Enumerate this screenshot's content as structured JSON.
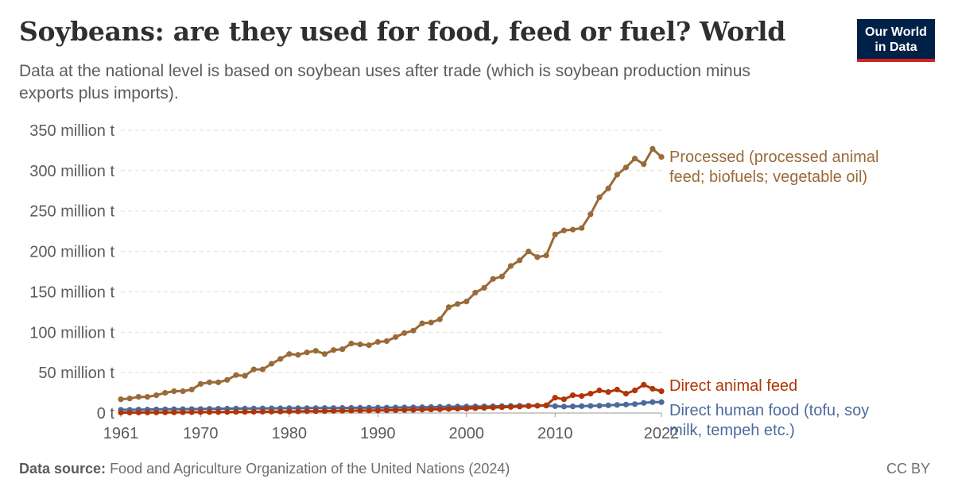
{
  "header": {
    "title": "Soybeans: are they used for food, feed or fuel? World",
    "subtitle": "Data at the national level is based on soybean uses after trade (which is soybean production minus exports plus imports).",
    "logo_line1": "Our World",
    "logo_line2": "in Data"
  },
  "footer": {
    "source_label": "Data source:",
    "source_text": "Food and Agriculture Organization of the United Nations (2024)",
    "license": "CC BY"
  },
  "chart_data": {
    "type": "line",
    "title": "Soybeans: are they used for food, feed or fuel? World",
    "xlabel": "",
    "ylabel": "",
    "xlim": [
      1961,
      2022
    ],
    "ylim": [
      0,
      350000000
    ],
    "y_ticks": [
      0,
      50000000,
      100000000,
      150000000,
      200000000,
      250000000,
      300000000,
      350000000
    ],
    "y_tick_labels": [
      "0 t",
      "50 million t",
      "100 million t",
      "150 million t",
      "200 million t",
      "250 million t",
      "300 million t",
      "350 million t"
    ],
    "x_ticks": [
      1961,
      1970,
      1980,
      1990,
      2000,
      2010,
      2022
    ],
    "x_tick_labels": [
      "1961",
      "1970",
      "1980",
      "1990",
      "2000",
      "2010",
      "2022"
    ],
    "grid": "horizontal dashed",
    "legend": "inline-right",
    "x": [
      1961,
      1962,
      1963,
      1964,
      1965,
      1966,
      1967,
      1968,
      1969,
      1970,
      1971,
      1972,
      1973,
      1974,
      1975,
      1976,
      1977,
      1978,
      1979,
      1980,
      1981,
      1982,
      1983,
      1984,
      1985,
      1986,
      1987,
      1988,
      1989,
      1990,
      1991,
      1992,
      1993,
      1994,
      1995,
      1996,
      1997,
      1998,
      1999,
      2000,
      2001,
      2002,
      2003,
      2004,
      2005,
      2006,
      2007,
      2008,
      2009,
      2010,
      2011,
      2012,
      2013,
      2014,
      2015,
      2016,
      2017,
      2018,
      2019,
      2020,
      2021,
      2022
    ],
    "series": [
      {
        "name": "Processed (processed animal feed; biofuels; vegetable oil)",
        "label_lines": [
          "Processed (processed animal",
          "feed; biofuels; vegetable oil)"
        ],
        "color": "#9a6a38",
        "values": [
          17000000,
          18000000,
          20000000,
          20000000,
          22000000,
          25000000,
          27000000,
          27000000,
          29000000,
          36000000,
          38000000,
          38000000,
          41000000,
          47000000,
          46000000,
          54000000,
          54000000,
          61000000,
          67000000,
          73000000,
          72000000,
          75000000,
          77000000,
          73000000,
          78000000,
          79000000,
          86000000,
          85000000,
          84000000,
          88000000,
          89000000,
          94000000,
          99000000,
          102000000,
          111000000,
          112000000,
          116000000,
          131000000,
          135000000,
          138000000,
          149000000,
          155000000,
          166000000,
          169000000,
          182000000,
          189000000,
          200000000,
          193000000,
          195000000,
          221000000,
          226000000,
          227000000,
          229000000,
          246000000,
          267000000,
          278000000,
          295000000,
          304000000,
          315000000,
          308000000,
          327000000,
          317000000
        ]
      },
      {
        "name": "Direct animal feed",
        "label_lines": [
          "Direct animal feed"
        ],
        "color": "#b13507",
        "values": [
          500000,
          500000,
          600000,
          600000,
          700000,
          800000,
          800000,
          900000,
          1000000,
          1100000,
          1100000,
          1200000,
          1300000,
          1400000,
          1400000,
          1500000,
          1600000,
          1700000,
          1800000,
          2000000,
          2000000,
          2200000,
          2300000,
          2400000,
          2600000,
          2700000,
          2900000,
          3000000,
          3000000,
          3200000,
          3300000,
          3500000,
          3700000,
          3900000,
          4200000,
          4400000,
          4600000,
          5000000,
          5200000,
          5500000,
          6000000,
          6300000,
          6800000,
          7200000,
          7500000,
          8000000,
          8500000,
          9000000,
          9500000,
          19000000,
          17000000,
          22000000,
          21000000,
          24000000,
          28000000,
          26000000,
          29000000,
          24000000,
          28000000,
          35000000,
          30000000,
          27000000
        ]
      },
      {
        "name": "Direct human food (tofu, soy milk, tempeh etc.)",
        "label_lines": [
          "Direct human food (tofu, soy",
          "milk, tempeh etc.)"
        ],
        "color": "#4c6a9c",
        "values": [
          4000000,
          4000000,
          4200000,
          4300000,
          4500000,
          4600000,
          4700000,
          4800000,
          4900000,
          5000000,
          5200000,
          5300000,
          5400000,
          5500000,
          5500000,
          5600000,
          5700000,
          5800000,
          5900000,
          6000000,
          6000000,
          6100000,
          6100000,
          6200000,
          6200000,
          6300000,
          6400000,
          6500000,
          6500000,
          6600000,
          6700000,
          6800000,
          6900000,
          7000000,
          7200000,
          7400000,
          7600000,
          7800000,
          8000000,
          8000000,
          8100000,
          8200000,
          8300000,
          8500000,
          8700000,
          8900000,
          9000000,
          9100000,
          9200000,
          8500000,
          8000000,
          8200000,
          8500000,
          8800000,
          9000000,
          9500000,
          10000000,
          10500000,
          11000000,
          12500000,
          13500000,
          13500000
        ]
      }
    ]
  }
}
